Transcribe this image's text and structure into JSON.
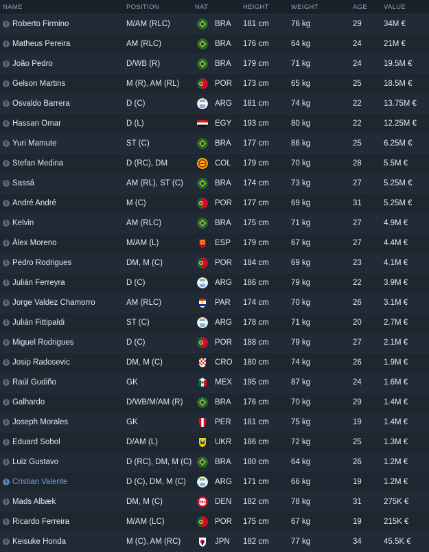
{
  "headers": {
    "name": "NAME",
    "position": "POSITION",
    "nat": "NAT",
    "height": "HEIGHT",
    "weight": "WEIGHT",
    "age": "AGE",
    "value": "VALUE"
  },
  "players": [
    {
      "name": "Roberto Firmino",
      "position": "M/AM (RLC)",
      "nat": "BRA",
      "height": "181 cm",
      "weight": "76 kg",
      "age": "29",
      "value": "34M €"
    },
    {
      "name": "Matheus Pereira",
      "position": "AM (RLC)",
      "nat": "BRA",
      "height": "176 cm",
      "weight": "64 kg",
      "age": "24",
      "value": "21M €"
    },
    {
      "name": "João Pedro",
      "position": "D/WB (R)",
      "nat": "BRA",
      "height": "179 cm",
      "weight": "71 kg",
      "age": "24",
      "value": "19.5M €"
    },
    {
      "name": "Gelson Martins",
      "position": "M (R), AM (RL)",
      "nat": "POR",
      "height": "173 cm",
      "weight": "65 kg",
      "age": "25",
      "value": "18.5M €"
    },
    {
      "name": "Osvaldo Barrera",
      "position": "D (C)",
      "nat": "ARG",
      "height": "181 cm",
      "weight": "74 kg",
      "age": "22",
      "value": "13.75M €"
    },
    {
      "name": "Hassan Omar",
      "position": "D (L)",
      "nat": "EGY",
      "height": "193 cm",
      "weight": "80 kg",
      "age": "22",
      "value": "12.25M €"
    },
    {
      "name": "Yuri Mamute",
      "position": "ST (C)",
      "nat": "BRA",
      "height": "177 cm",
      "weight": "86 kg",
      "age": "25",
      "value": "6.25M €"
    },
    {
      "name": "Stefan Medina",
      "position": "D (RC), DM",
      "nat": "COL",
      "height": "179 cm",
      "weight": "70 kg",
      "age": "28",
      "value": "5.5M €"
    },
    {
      "name": "Sassá",
      "position": "AM (RL), ST (C)",
      "nat": "BRA",
      "height": "174 cm",
      "weight": "73 kg",
      "age": "27",
      "value": "5.25M €"
    },
    {
      "name": "André André",
      "position": "M (C)",
      "nat": "POR",
      "height": "177 cm",
      "weight": "69 kg",
      "age": "31",
      "value": "5.25M €"
    },
    {
      "name": "Kelvin",
      "position": "AM (RLC)",
      "nat": "BRA",
      "height": "175 cm",
      "weight": "71 kg",
      "age": "27",
      "value": "4.9M €"
    },
    {
      "name": "Àlex Moreno",
      "position": "M/AM (L)",
      "nat": "ESP",
      "height": "179 cm",
      "weight": "67 kg",
      "age": "27",
      "value": "4.4M €"
    },
    {
      "name": "Pedro Rodrigues",
      "position": "DM, M (C)",
      "nat": "POR",
      "height": "184 cm",
      "weight": "69 kg",
      "age": "23",
      "value": "4.1M €"
    },
    {
      "name": "Julián Ferreyra",
      "position": "D (C)",
      "nat": "ARG",
      "height": "186 cm",
      "weight": "79 kg",
      "age": "22",
      "value": "3.9M €"
    },
    {
      "name": "Jorge Valdez Chamorro",
      "position": "AM (RLC)",
      "nat": "PAR",
      "height": "174 cm",
      "weight": "70 kg",
      "age": "26",
      "value": "3.1M €"
    },
    {
      "name": "Julián Fittipaldi",
      "position": "ST (C)",
      "nat": "ARG",
      "height": "178 cm",
      "weight": "71 kg",
      "age": "20",
      "value": "2.7M €"
    },
    {
      "name": "Miguel Rodrigues",
      "position": "D (C)",
      "nat": "POR",
      "height": "188 cm",
      "weight": "79 kg",
      "age": "27",
      "value": "2.1M €"
    },
    {
      "name": "Josip Radosevic",
      "position": "DM, M (C)",
      "nat": "CRO",
      "height": "180 cm",
      "weight": "74 kg",
      "age": "26",
      "value": "1.9M €"
    },
    {
      "name": "Raúl Gudiño",
      "position": "GK",
      "nat": "MEX",
      "height": "195 cm",
      "weight": "87 kg",
      "age": "24",
      "value": "1.6M €"
    },
    {
      "name": "Galhardo",
      "position": "D/WB/M/AM (R)",
      "nat": "BRA",
      "height": "176 cm",
      "weight": "70 kg",
      "age": "29",
      "value": "1.4M €"
    },
    {
      "name": "Joseph Morales",
      "position": "GK",
      "nat": "PER",
      "height": "181 cm",
      "weight": "75 kg",
      "age": "19",
      "value": "1.4M €"
    },
    {
      "name": "Eduard Sobol",
      "position": "D/AM (L)",
      "nat": "UKR",
      "height": "186 cm",
      "weight": "72 kg",
      "age": "25",
      "value": "1.3M €"
    },
    {
      "name": "Luiz Gustavo",
      "position": "D (RC), DM, M (C)",
      "nat": "BRA",
      "height": "180 cm",
      "weight": "64 kg",
      "age": "26",
      "value": "1.2M €"
    },
    {
      "name": "Cristian Valente",
      "position": "D (C), DM, M (C)",
      "nat": "ARG",
      "height": "171 cm",
      "weight": "66 kg",
      "age": "19",
      "value": "1.2M €",
      "highlight": true
    },
    {
      "name": "Mads Albæk",
      "position": "DM, M (C)",
      "nat": "DEN",
      "height": "182 cm",
      "weight": "78 kg",
      "age": "31",
      "value": "275K €"
    },
    {
      "name": "Ricardo Ferreira",
      "position": "M/AM (LC)",
      "nat": "POR",
      "height": "175 cm",
      "weight": "67 kg",
      "age": "19",
      "value": "215K €"
    },
    {
      "name": "Keisuke Honda",
      "position": "M (C), AM (RC)",
      "nat": "JPN",
      "height": "182 cm",
      "weight": "77 kg",
      "age": "34",
      "value": "45.5K €"
    }
  ],
  "flag_icons": {
    "BRA": "brazil-crest-icon",
    "POR": "portugal-crest-icon",
    "ARG": "argentina-crest-icon",
    "EGY": "egypt-crest-icon",
    "COL": "colombia-crest-icon",
    "ESP": "spain-crest-icon",
    "PAR": "paraguay-crest-icon",
    "CRO": "croatia-crest-icon",
    "MEX": "mexico-crest-icon",
    "PER": "peru-crest-icon",
    "UKR": "ukraine-crest-icon",
    "DEN": "denmark-crest-icon",
    "JPN": "japan-crest-icon"
  },
  "colors": {
    "background": "#1e2630",
    "row_alt": "#212a35",
    "text": "#e3e7ec",
    "header_text": "#97a2ae",
    "highlight_name": "#6fa3de"
  }
}
